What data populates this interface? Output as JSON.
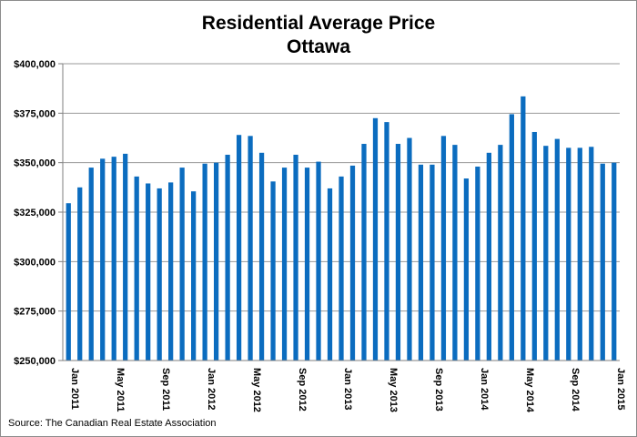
{
  "chart_data": {
    "type": "bar",
    "title": "Residential Average Price",
    "subtitle": "Ottawa",
    "source": "Source: The Canadian Real Estate Association",
    "xlabel": "",
    "ylabel": "",
    "ylim": [
      250000,
      400000
    ],
    "yticks": [
      250000,
      275000,
      300000,
      325000,
      350000,
      375000,
      400000
    ],
    "ytick_labels": [
      "$250,000",
      "$275,000",
      "$300,000",
      "$325,000",
      "$350,000",
      "$375,000",
      "$400,000"
    ],
    "grid": "horizontal",
    "bar_color": "#0b6cbf",
    "categories": [
      "Jan 2011",
      "Feb 2011",
      "Mar 2011",
      "Apr 2011",
      "May 2011",
      "Jun 2011",
      "Jul 2011",
      "Aug 2011",
      "Sep 2011",
      "Oct 2011",
      "Nov 2011",
      "Dec 2011",
      "Jan 2012",
      "Feb 2012",
      "Mar 2012",
      "Apr 2012",
      "May 2012",
      "Jun 2012",
      "Jul 2012",
      "Aug 2012",
      "Sep 2012",
      "Oct 2012",
      "Nov 2012",
      "Dec 2012",
      "Jan 2013",
      "Feb 2013",
      "Mar 2013",
      "Apr 2013",
      "May 2013",
      "Jun 2013",
      "Jul 2013",
      "Aug 2013",
      "Sep 2013",
      "Oct 2013",
      "Nov 2013",
      "Dec 2013",
      "Jan 2014",
      "Feb 2014",
      "Mar 2014",
      "Apr 2014",
      "May 2014",
      "Jun 2014",
      "Jul 2014",
      "Aug 2014",
      "Sep 2014",
      "Oct 2014",
      "Nov 2014",
      "Dec 2014",
      "Jan 2015"
    ],
    "tick_labels": [
      {
        "index": 0,
        "label": "Jan 2011"
      },
      {
        "index": 4,
        "label": "May 2011"
      },
      {
        "index": 8,
        "label": "Sep 2011"
      },
      {
        "index": 12,
        "label": "Jan 2012"
      },
      {
        "index": 16,
        "label": "May 2012"
      },
      {
        "index": 20,
        "label": "Sep 2012"
      },
      {
        "index": 24,
        "label": "Jan 2013"
      },
      {
        "index": 28,
        "label": "May 2013"
      },
      {
        "index": 32,
        "label": "Sep 2013"
      },
      {
        "index": 36,
        "label": "Jan 2014"
      },
      {
        "index": 40,
        "label": "May 2014"
      },
      {
        "index": 44,
        "label": "Sep 2014"
      },
      {
        "index": 48,
        "label": "Jan 2015"
      }
    ],
    "values": [
      329500,
      337500,
      347500,
      352000,
      353000,
      354500,
      343000,
      339500,
      337000,
      340000,
      347500,
      335500,
      349500,
      350000,
      354000,
      364000,
      363500,
      355000,
      340500,
      347500,
      354000,
      347500,
      350500,
      337000,
      343000,
      348500,
      359500,
      372500,
      370500,
      359500,
      362500,
      349000,
      349000,
      363500,
      359000,
      342000,
      348000,
      355000,
      359000,
      374500,
      383500,
      365500,
      358500,
      362000,
      357500,
      357500,
      358000,
      349500,
      350000
    ]
  }
}
